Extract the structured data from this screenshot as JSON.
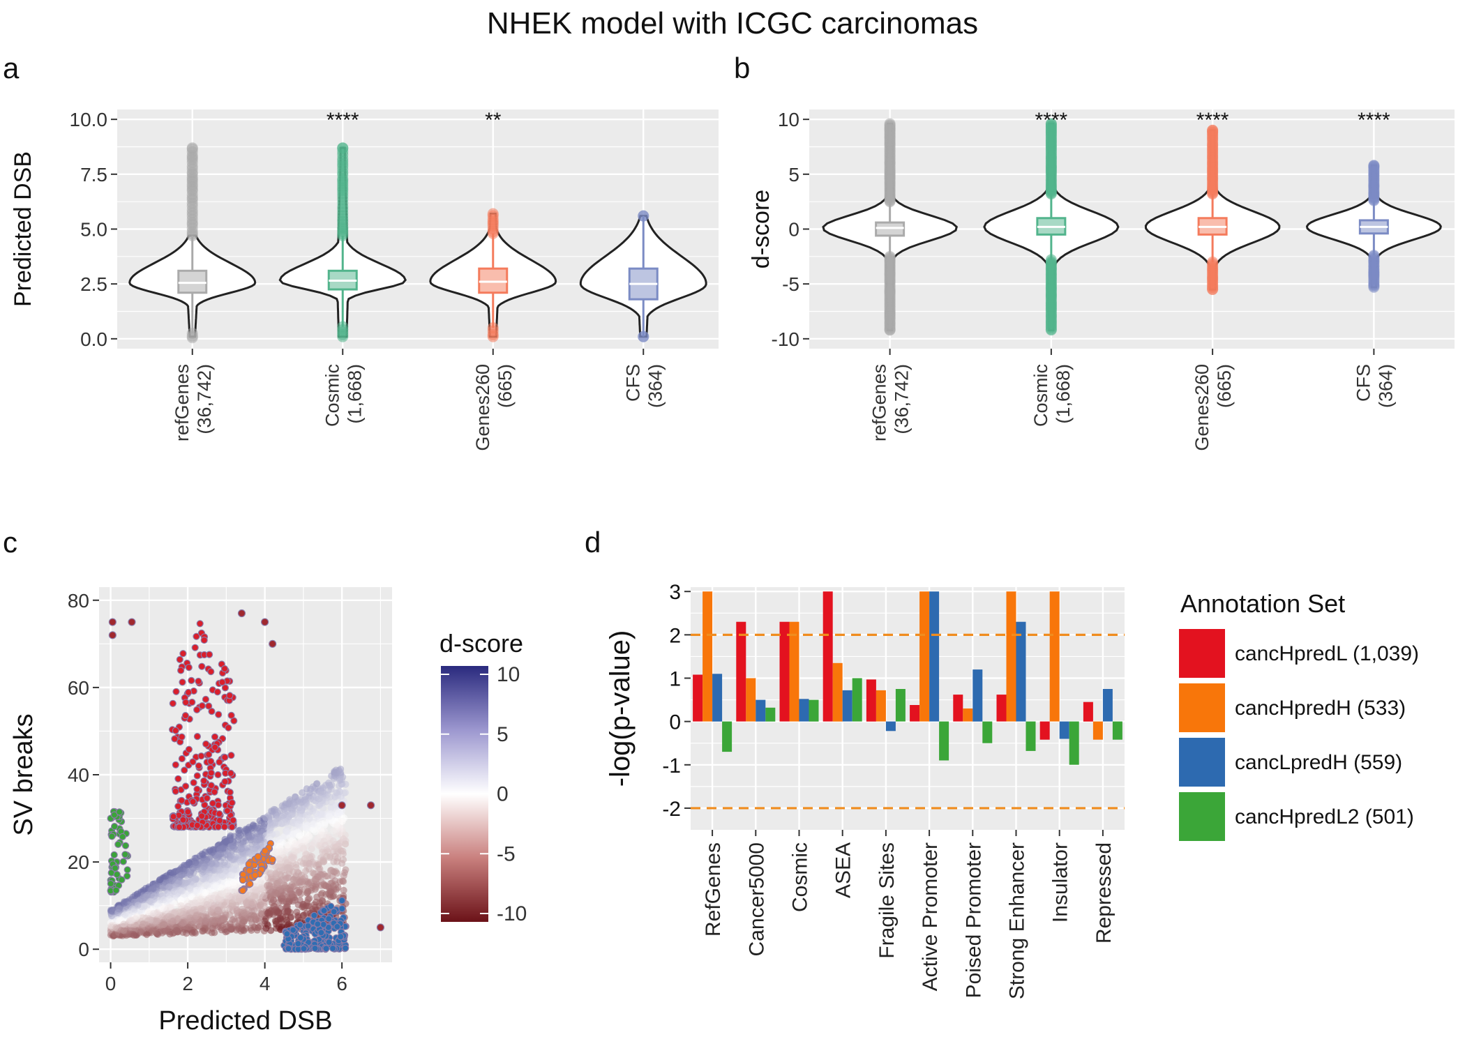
{
  "title": "NHEK model with ICGC carcinomas",
  "chart_data": [
    {
      "panel": "a",
      "type": "violin",
      "ylabel": "Predicted DSB",
      "ylim": [
        0,
        10
      ],
      "yticks": [
        "0.0",
        "2.5",
        "5.0",
        "7.5",
        "10.0"
      ],
      "grid": true,
      "groups": [
        {
          "name": "refGenes",
          "count": "(36,742)",
          "color": "#aaaaaa",
          "signif": "",
          "median": 2.55,
          "q1": 2.1,
          "q3": 3.1,
          "whisker_low": 0.25,
          "whisker_high": 4.7,
          "min": 0.05,
          "max": 8.7,
          "violin_top": 4.7,
          "violin_bottom": 0.1
        },
        {
          "name": "Cosmic",
          "count": "(1,668)",
          "color": "#52b48c",
          "signif": "****",
          "median": 2.65,
          "q1": 2.25,
          "q3": 3.1,
          "whisker_low": 0.55,
          "whisker_high": 4.7,
          "min": 0.1,
          "max": 8.7,
          "violin_top": 8.7,
          "violin_bottom": 0.1
        },
        {
          "name": "Genes260",
          "count": "(665)",
          "color": "#f47b5c",
          "signif": "**",
          "median": 2.6,
          "q1": 2.1,
          "q3": 3.2,
          "whisker_low": 0.5,
          "whisker_high": 4.8,
          "min": 0.1,
          "max": 5.7,
          "violin_top": 5.7,
          "violin_bottom": 0.1
        },
        {
          "name": "CFS",
          "count": "(364)",
          "color": "#7b8bc4",
          "signif": "",
          "median": 2.5,
          "q1": 1.8,
          "q3": 3.2,
          "whisker_low": 0.1,
          "whisker_high": 5.6,
          "min": 0.1,
          "max": 5.6,
          "violin_top": 5.6,
          "violin_bottom": 0.1
        }
      ]
    },
    {
      "panel": "b",
      "type": "violin",
      "ylabel": "d-score",
      "ylim": [
        -10,
        10
      ],
      "yticks": [
        "-10",
        "-5",
        "0",
        "5",
        "10"
      ],
      "grid": true,
      "groups": [
        {
          "name": "refGenes",
          "count": "(36,742)",
          "color": "#aaaaaa",
          "signif": "",
          "median": 0.1,
          "q1": -0.6,
          "q3": 0.6,
          "whisker_low": -2.5,
          "whisker_high": 2.5,
          "min": -9.2,
          "max": 9.6
        },
        {
          "name": "Cosmic",
          "count": "(1,668)",
          "color": "#52b48c",
          "signif": "****",
          "median": 0.2,
          "q1": -0.5,
          "q3": 1.0,
          "whisker_low": -2.8,
          "whisker_high": 3.2,
          "min": -9.2,
          "max": 9.6
        },
        {
          "name": "Genes260",
          "count": "(665)",
          "color": "#f47b5c",
          "signif": "****",
          "median": 0.2,
          "q1": -0.5,
          "q3": 1.0,
          "whisker_low": -3.0,
          "whisker_high": 3.2,
          "min": -5.5,
          "max": 9.0
        },
        {
          "name": "CFS",
          "count": "(364)",
          "color": "#7b8bc4",
          "signif": "****",
          "median": 0.2,
          "q1": -0.4,
          "q3": 0.8,
          "whisker_low": -2.4,
          "whisker_high": 2.6,
          "min": -5.3,
          "max": 5.8
        }
      ]
    },
    {
      "panel": "c",
      "type": "scatter",
      "xlabel": "Predicted DSB",
      "ylabel": "SV breaks",
      "xlim": [
        -0.3,
        7.3
      ],
      "ylim": [
        -3,
        83
      ],
      "xticks": [
        "0",
        "2",
        "4",
        "6"
      ],
      "yticks": [
        "0",
        "20",
        "40",
        "60",
        "80"
      ],
      "grid": true,
      "colorbar": {
        "title": "d-score",
        "ticks": [
          "-10",
          "-5",
          "0",
          "5",
          "10"
        ],
        "low_color": "#6b1218",
        "mid_color": "#ffffff",
        "high_color": "#2a2a7e"
      },
      "clusters": [
        {
          "color": "#d91f2b",
          "x_range": [
            1.6,
            3.2
          ],
          "y_range": [
            28,
            78
          ]
        },
        {
          "color": "#f47a1f",
          "x_range": [
            3.4,
            4.2
          ],
          "y_range": [
            13,
            26
          ]
        },
        {
          "color": "#2f6db2",
          "x_range": [
            4.5,
            6.1
          ],
          "y_range": [
            0,
            14
          ]
        },
        {
          "color": "#3ba33a",
          "x_range": [
            0.0,
            0.5
          ],
          "y_range": [
            13,
            32
          ]
        }
      ]
    },
    {
      "panel": "d",
      "type": "bar",
      "ylabel": "-log(p-value)",
      "ylim": [
        -2.5,
        3.1
      ],
      "yticks": [
        "-2",
        "-1",
        "0",
        "1",
        "2",
        "3"
      ],
      "hlines": [
        2,
        -2
      ],
      "hline_color": "#f08c1e",
      "grid": true,
      "legend_title": "Annotation Set",
      "legend_position": "right",
      "categories": [
        "RefGenes",
        "Cancer5000",
        "Cosmic",
        "ASEA",
        "Fragile Sites",
        "Active Promoter",
        "Poised Promoter",
        "Strong Enhancer",
        "Insulator",
        "Repressed"
      ],
      "series": [
        {
          "name": "cancHpredL (1,039)",
          "color": "#e3121f",
          "values": [
            1.08,
            2.3,
            2.3,
            3.0,
            0.97,
            0.38,
            0.62,
            0.62,
            -0.42,
            0.45
          ]
        },
        {
          "name": "cancHpredH (533)",
          "color": "#f8760a",
          "values": [
            3.0,
            1.0,
            2.3,
            1.35,
            0.72,
            3.0,
            0.3,
            3.0,
            3.0,
            -0.42
          ]
        },
        {
          "name": "cancLpredH (559)",
          "color": "#2d6ab0",
          "values": [
            1.1,
            0.5,
            0.52,
            0.72,
            -0.22,
            3.0,
            1.2,
            2.3,
            -0.4,
            0.75
          ]
        },
        {
          "name": "cancHpredL2 (501)",
          "color": "#3ba638",
          "values": [
            -0.7,
            0.32,
            0.5,
            1.0,
            0.75,
            -0.9,
            -0.5,
            -0.68,
            -1.0,
            -0.42
          ]
        }
      ]
    }
  ]
}
